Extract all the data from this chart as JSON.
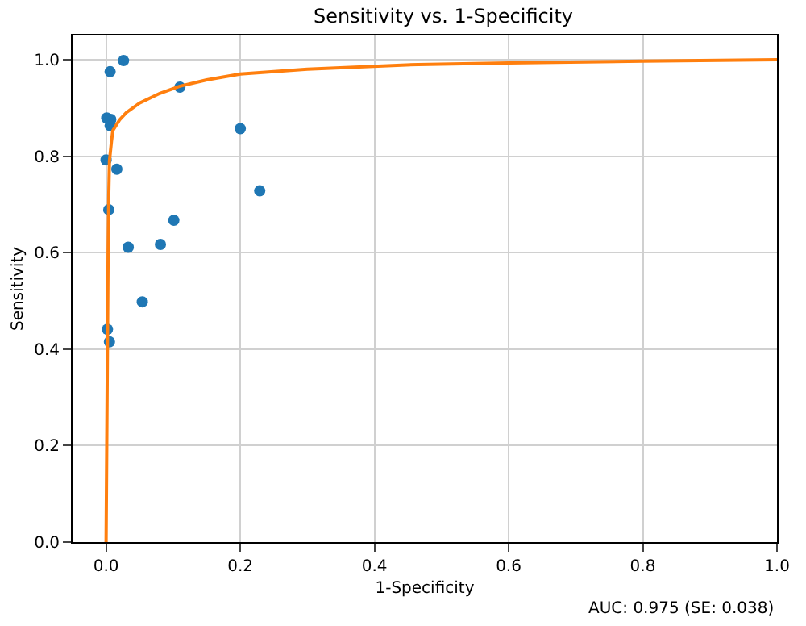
{
  "chart_data": {
    "type": "scatter",
    "title": "Sensitivity vs. 1-Specificity",
    "xlabel": "1-Specificity",
    "ylabel": "Sensitivity",
    "series": [
      {
        "color": "#1f77b4",
        "marker": "circle",
        "x": [
          0.026,
          0.006,
          0.11,
          0.001,
          0.007,
          0.006,
          0.2,
          0.0,
          0.016,
          0.229,
          0.004,
          0.101,
          0.033,
          0.081,
          0.054,
          0.002,
          0.005
        ],
        "values": [
          0.998,
          0.975,
          0.943,
          0.879,
          0.876,
          0.863,
          0.857,
          0.792,
          0.773,
          0.728,
          0.689,
          0.667,
          0.611,
          0.617,
          0.498,
          0.441,
          0.415
        ]
      },
      {
        "type": "line",
        "color": "#ff7f0e",
        "line_style": "solid",
        "x": [
          0.0,
          0.001,
          0.002,
          0.003,
          0.004,
          0.005,
          0.008,
          0.01,
          0.02,
          0.03,
          0.05,
          0.08,
          0.11,
          0.15,
          0.2,
          0.3,
          0.465,
          0.6,
          0.8,
          1.0
        ],
        "values": [
          0.0,
          0.2,
          0.4,
          0.6,
          0.72,
          0.79,
          0.83,
          0.853,
          0.875,
          0.89,
          0.91,
          0.93,
          0.945,
          0.958,
          0.97,
          0.98,
          0.99,
          0.993,
          0.997,
          1.0
        ]
      }
    ],
    "xlim": [
      -0.05,
      1.0
    ],
    "ylim": [
      0.0,
      1.05
    ],
    "xticks": [
      {
        "value": 0.0,
        "label": "0.0"
      },
      0.2,
      0.4,
      0.6,
      0.8,
      {
        "value": 1.0,
        "label": "1.0"
      }
    ],
    "yticks": [
      {
        "value": 0.0,
        "label": "0.0"
      },
      0.2,
      0.4,
      0.6,
      0.8,
      {
        "value": 1.0,
        "label": "1.0"
      }
    ],
    "grid": true,
    "annotations": [
      "AUC: 0.975 (SE: 0.038)"
    ]
  }
}
